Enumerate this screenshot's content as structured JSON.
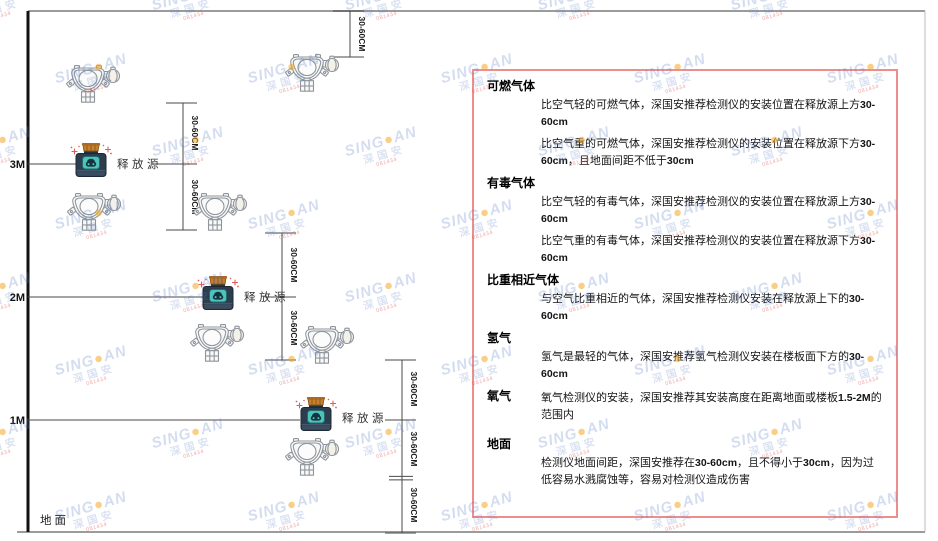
{
  "watermark": {
    "brand_left": "SING",
    "dot": "●",
    "brand_right": "AN",
    "company": "深国安",
    "code": "081434"
  },
  "diagram": {
    "axis_labels": [
      "3M",
      "2M",
      "1M"
    ],
    "ground_label": "地面",
    "release_source_label": "释放源",
    "dimension_label": "30-60CM",
    "icons": [
      "gas-detector-icon",
      "release-source-icon"
    ],
    "colors": {
      "panel_border": "#ee8e8c",
      "source_body": "#2e3d4d",
      "source_screen": "#4cc3bd",
      "source_cap": "#c8802c",
      "sparkle": "#e25c5c",
      "watermark_blue": "#587cc4",
      "line": "#4a4a4a"
    }
  },
  "panel": {
    "sections": [
      {
        "heading": "可燃气体",
        "paragraphs": [
          [
            {
              "t": "比空气轻的可燃气体，深国安推荐检测仪的安装位置在释放源上方"
            },
            {
              "t": "30-60cm",
              "b": true
            }
          ],
          [
            {
              "t": "比空气重的可燃气体，深国安推荐检测仪的安装位置在释放源下方"
            },
            {
              "t": "30-60cm",
              "b": true
            },
            {
              "t": "，且地面间距不低于"
            },
            {
              "t": "30cm",
              "b": true
            }
          ]
        ]
      },
      {
        "heading": "有毒气体",
        "paragraphs": [
          [
            {
              "t": "比空气轻的有毒气体，深国安推荐检测仪的安装位置在释放源上方"
            },
            {
              "t": "30-60cm",
              "b": true
            }
          ],
          [
            {
              "t": "比空气重的有毒气体，深国安推荐检测仪的安装位置在释放源下方"
            },
            {
              "t": "30-60cm",
              "b": true
            }
          ]
        ]
      },
      {
        "heading": "比重相近气体",
        "paragraphs": [
          [
            {
              "t": "与空气比重相近的气体，深国安推荐检测仪安装在释放源上下的"
            },
            {
              "t": "30-60cm",
              "b": true
            }
          ]
        ]
      },
      {
        "heading": "氢气",
        "paragraphs": [
          [
            {
              "t": "氢气是最轻的气体，深国安推荐氢气检测仪安装在楼板面下方的"
            },
            {
              "t": "30-60cm",
              "b": true
            }
          ]
        ]
      },
      {
        "heading": "氧气",
        "inline": true,
        "paragraphs": [
          [
            {
              "t": "氧气检测仪的安装，深国安推荐其安装高度在距离地面或楼板"
            },
            {
              "t": "1.5-2M",
              "b": true
            },
            {
              "t": "的范围内"
            }
          ]
        ]
      },
      {
        "heading": "地面",
        "gap": true,
        "paragraphs": [
          [
            {
              "t": "检测仪地面间距，深国安推荐在"
            },
            {
              "t": "30-60cm",
              "b": true
            },
            {
              "t": "，且不得小于"
            },
            {
              "t": "30cm",
              "b": true
            },
            {
              "t": "，因为过低容易水溅腐蚀等，容易对检测仪造成伤害"
            }
          ]
        ]
      }
    ]
  }
}
